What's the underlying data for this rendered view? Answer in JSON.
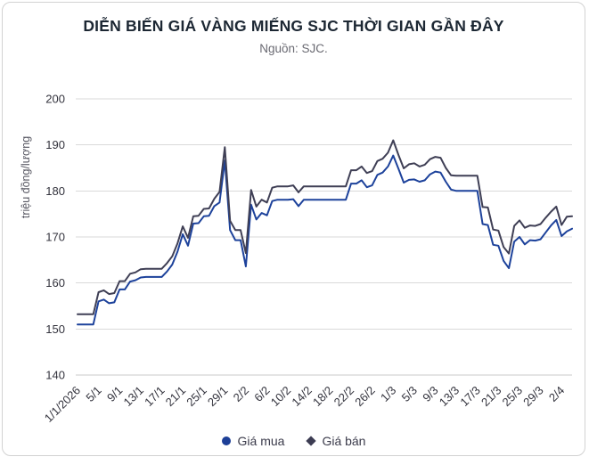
{
  "header": {
    "title": "DIỄN BIẾN GIÁ VÀNG MIẾNG SJC THỜI GIAN GẦN ĐÂY",
    "subtitle": "Nguồn: SJC."
  },
  "legend": {
    "items": [
      {
        "label": "Giá mua",
        "marker": "circle",
        "color": "#1d3f97"
      },
      {
        "label": "Giá bán",
        "marker": "diamond",
        "color": "#3c3c52"
      }
    ]
  },
  "colors": {
    "buy_line": "#1d429b",
    "sell_line": "#3f3f55",
    "gridline": "#d9d9d9",
    "axis_line": "#c8c8c8",
    "tick_label": "#33333d",
    "y_axis_title": "#555560",
    "title": "#1c2733",
    "subtitle": "#6a6a72"
  },
  "chart_data": {
    "type": "line",
    "title": "DIỄN BIẾN GIÁ VÀNG MIẾNG SJC THỜI GIAN GẦN ĐÂY",
    "subtitle": "Nguồn: SJC.",
    "xlabel": "",
    "ylabel": "triệu đồng/lượng",
    "ylim": [
      140,
      200
    ],
    "yticks": [
      140,
      150,
      160,
      170,
      180,
      190,
      200
    ],
    "grid": "horizontal",
    "legend_position": "bottom-center",
    "tick_every": 4,
    "x_tick_labels": [
      "1/1/2026",
      "5/1",
      "9/1",
      "13/1",
      "17/1",
      "21/1",
      "25/1",
      "29/1",
      "2/2",
      "6/2",
      "10/2",
      "14/2",
      "18/2",
      "22/2",
      "26/2",
      "1/3",
      "5/3",
      "9/3",
      "13/3",
      "17/3",
      "21/3",
      "25/3",
      "29/3",
      "2/4"
    ],
    "series": [
      {
        "name": "Giá mua",
        "color": "#1d429b",
        "marker": "circle",
        "values": [
          151.0,
          151.0,
          151.0,
          151.0,
          156.0,
          156.4,
          155.6,
          155.8,
          158.6,
          158.6,
          160.3,
          160.6,
          161.2,
          161.3,
          161.3,
          161.3,
          161.3,
          162.5,
          164.0,
          166.8,
          170.6,
          168.1,
          172.9,
          173.0,
          174.5,
          174.6,
          176.7,
          177.5,
          186.6,
          171.5,
          169.3,
          169.3,
          163.6,
          177.0,
          173.8,
          175.2,
          174.7,
          177.8,
          178.1,
          178.1,
          178.1,
          178.2,
          176.7,
          178.1,
          178.1,
          178.1,
          178.1,
          178.1,
          178.1,
          178.1,
          178.1,
          178.1,
          181.6,
          181.6,
          182.3,
          180.8,
          181.2,
          183.5,
          184.0,
          185.3,
          187.7,
          184.8,
          181.8,
          182.4,
          182.5,
          182.0,
          182.3,
          183.6,
          184.2,
          184.0,
          182.0,
          180.3,
          180.0,
          180.0,
          180.0,
          180.0,
          180.0,
          172.8,
          172.6,
          168.3,
          168.1,
          164.8,
          163.2,
          169.0,
          170.0,
          168.4,
          169.3,
          169.2,
          169.5,
          171.0,
          172.5,
          173.7,
          170.2,
          171.2,
          171.8
        ]
      },
      {
        "name": "Giá bán",
        "color": "#3f3f55",
        "marker": "diamond",
        "values": [
          153.2,
          153.2,
          153.2,
          153.2,
          158.0,
          158.4,
          157.6,
          157.8,
          160.4,
          160.4,
          162.0,
          162.3,
          163.0,
          163.1,
          163.1,
          163.1,
          163.1,
          164.3,
          165.8,
          168.6,
          172.3,
          169.8,
          174.5,
          174.6,
          176.1,
          176.2,
          178.3,
          179.8,
          189.5,
          173.5,
          171.5,
          171.5,
          166.5,
          180.2,
          176.6,
          178.1,
          177.5,
          180.7,
          181.0,
          181.0,
          181.0,
          181.2,
          179.7,
          181.0,
          181.0,
          181.0,
          181.0,
          181.0,
          181.0,
          181.0,
          181.0,
          181.0,
          184.5,
          184.5,
          185.3,
          183.9,
          184.3,
          186.5,
          187.0,
          188.3,
          191.0,
          187.8,
          184.9,
          185.8,
          186.0,
          185.3,
          185.7,
          186.9,
          187.4,
          187.2,
          185.0,
          183.4,
          183.3,
          183.3,
          183.3,
          183.3,
          183.3,
          176.5,
          176.4,
          171.6,
          171.4,
          167.8,
          166.4,
          172.4,
          173.6,
          172.0,
          172.5,
          172.4,
          172.8,
          174.2,
          175.5,
          176.6,
          172.6,
          174.4,
          174.5
        ]
      }
    ]
  }
}
